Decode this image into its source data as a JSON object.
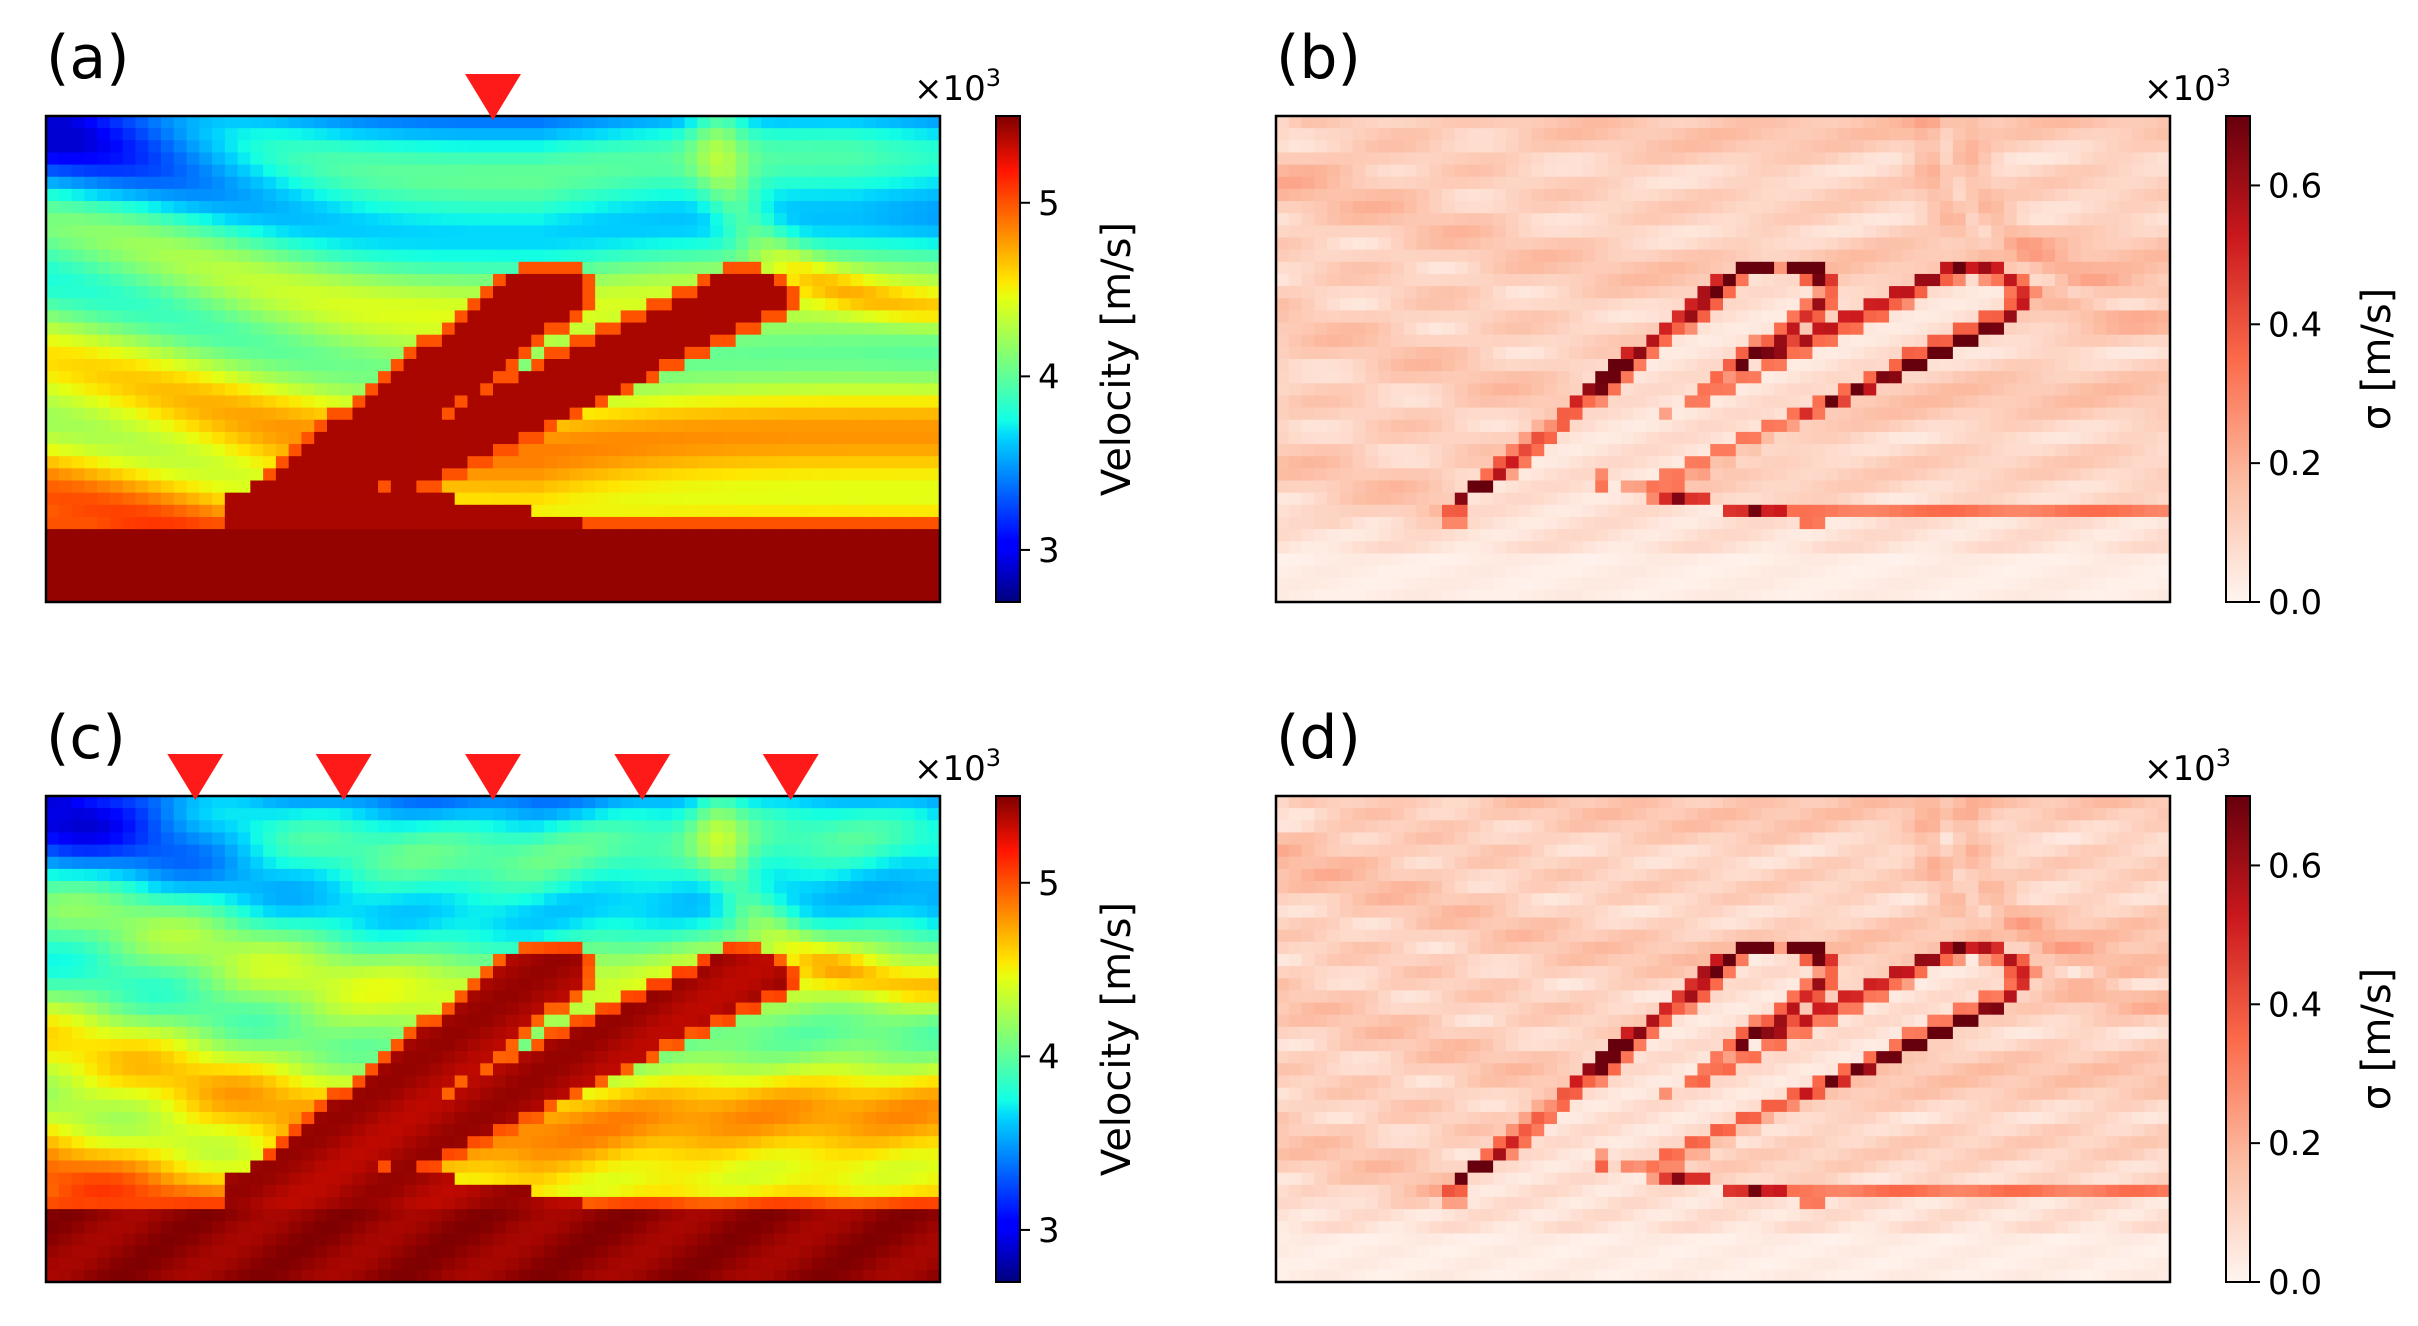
{
  "figure": {
    "description_colormaps": {
      "velocity": "jet",
      "sigma": "Reds"
    },
    "colors": {
      "marker": "#ff1a1a",
      "frame": "#000000"
    }
  },
  "chart_data": [
    {
      "panel": "(a)",
      "type": "heatmap",
      "colormap": "jet",
      "colorbar": {
        "label": "Velocity [m/s]",
        "multiplier": "×10",
        "multiplier_exp": "3",
        "range": [
          2.7,
          5.5
        ],
        "ticks": [
          3,
          4,
          5
        ]
      },
      "sources": [
        0.5
      ],
      "grid_cols": 70,
      "grid_rows": 40
    },
    {
      "panel": "(b)",
      "type": "heatmap",
      "colormap": "Reds",
      "colorbar": {
        "label": "σ [m/s]",
        "multiplier": "×10",
        "multiplier_exp": "3",
        "range": [
          0.0,
          0.7
        ],
        "ticks": [
          0.0,
          0.2,
          0.4,
          0.6
        ]
      },
      "sources": [],
      "grid_cols": 70,
      "grid_rows": 40
    },
    {
      "panel": "(c)",
      "type": "heatmap",
      "colormap": "jet",
      "colorbar": {
        "label": "Velocity [m/s]",
        "multiplier": "×10",
        "multiplier_exp": "3",
        "range": [
          2.7,
          5.5
        ],
        "ticks": [
          3,
          4,
          5
        ]
      },
      "sources": [
        0.167,
        0.333,
        0.5,
        0.667,
        0.833
      ],
      "grid_cols": 70,
      "grid_rows": 40
    },
    {
      "panel": "(d)",
      "type": "heatmap",
      "colormap": "Reds",
      "colorbar": {
        "label": "σ [m/s]",
        "multiplier": "×10",
        "multiplier_exp": "3",
        "range": [
          0.0,
          0.7
        ],
        "ticks": [
          0.0,
          0.2,
          0.4,
          0.6
        ]
      },
      "sources": [],
      "grid_cols": 70,
      "grid_rows": 40
    }
  ]
}
